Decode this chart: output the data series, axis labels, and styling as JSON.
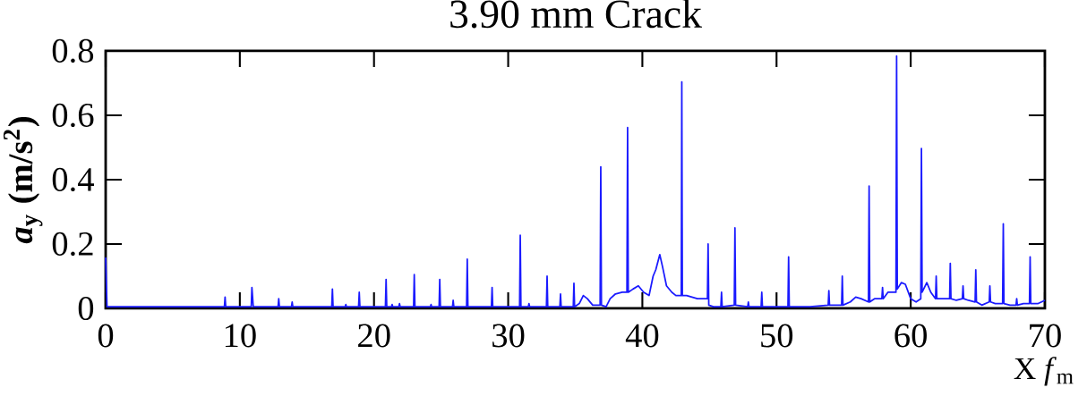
{
  "chart_data": {
    "type": "line",
    "title": "3.90 mm Crack",
    "ylabel": "*a*$_{y}$ (m/s$^{2}$)",
    "xlabel": "X *f*$_{m}$",
    "xlim": [
      0,
      70
    ],
    "xticks": [
      0,
      10,
      20,
      30,
      40,
      50,
      60,
      70
    ],
    "ylim": [
      0,
      0.8
    ],
    "yticks": [
      0,
      0.2,
      0.4,
      0.6,
      0.8
    ],
    "marker": "none",
    "line_style": "solid",
    "series": [
      {
        "color": "#1a1aff",
        "x": [
          0,
          0.1,
          8.85,
          8.9,
          8.95,
          10.85,
          10.9,
          11.0,
          12.85,
          12.9,
          12.95,
          13.85,
          13.9,
          13.95,
          16.85,
          16.9,
          16.95,
          17.85,
          17.9,
          17.95,
          18.85,
          18.9,
          18.95,
          20.85,
          20.9,
          20.95,
          21.3,
          21.35,
          21.4,
          21.85,
          21.9,
          21.95,
          22.95,
          23.0,
          23.05,
          24.2,
          24.25,
          24.3,
          24.85,
          24.9,
          24.95,
          25.85,
          25.9,
          25.95,
          26.9,
          26.95,
          27.0,
          28.75,
          28.8,
          28.85,
          30.85,
          30.9,
          30.95,
          31.5,
          31.55,
          31.6,
          32.85,
          32.9,
          32.95,
          33.85,
          33.9,
          33.95,
          34.85,
          34.9,
          34.95,
          35.3,
          35.6,
          35.9,
          36.3,
          36.85,
          36.9,
          36.95,
          37.3,
          37.6,
          38.0,
          38.5,
          38.85,
          38.9,
          38.95,
          39.3,
          39.7,
          40.1,
          40.5,
          40.8,
          41.0,
          41.3,
          41.5,
          41.8,
          42.2,
          42.5,
          42.9,
          42.94,
          42.98,
          43.3,
          43.7,
          44.1,
          44.5,
          44.85,
          44.9,
          44.95,
          45.3,
          45.85,
          45.9,
          45.95,
          46.85,
          46.9,
          46.95,
          47.85,
          47.9,
          47.95,
          48.85,
          48.9,
          48.95,
          50.85,
          50.9,
          50.95,
          52.5,
          53.85,
          53.9,
          53.95,
          54.85,
          54.9,
          54.95,
          55.5,
          55.9,
          56.3,
          56.85,
          56.9,
          56.95,
          57.3,
          57.85,
          57.9,
          57.95,
          58.3,
          58.9,
          58.95,
          59.0,
          59.3,
          59.6,
          60.0,
          60.4,
          60.75,
          60.8,
          60.85,
          61.2,
          61.5,
          61.85,
          61.9,
          61.95,
          62.4,
          62.9,
          62.95,
          63.0,
          63.4,
          63.85,
          63.9,
          63.95,
          64.3,
          64.8,
          64.85,
          64.9,
          65.3,
          65.85,
          65.9,
          65.95,
          66.3,
          66.85,
          66.9,
          66.95,
          67.4,
          67.85,
          67.9,
          67.95,
          68.4,
          68.85,
          68.9,
          68.95,
          69.5,
          70
        ],
        "values": [
          0.158,
          0.005,
          0.005,
          0.035,
          0.005,
          0.005,
          0.065,
          0.005,
          0.005,
          0.03,
          0.005,
          0.005,
          0.02,
          0.005,
          0.005,
          0.06,
          0.005,
          0.005,
          0.012,
          0.005,
          0.005,
          0.05,
          0.005,
          0.005,
          0.09,
          0.005,
          0.005,
          0.012,
          0.005,
          0.005,
          0.015,
          0.005,
          0.005,
          0.105,
          0.005,
          0.005,
          0.012,
          0.005,
          0.005,
          0.09,
          0.005,
          0.005,
          0.025,
          0.005,
          0.005,
          0.153,
          0.005,
          0.005,
          0.065,
          0.005,
          0.005,
          0.227,
          0.005,
          0.005,
          0.015,
          0.005,
          0.005,
          0.1,
          0.005,
          0.005,
          0.045,
          0.005,
          0.005,
          0.078,
          0.005,
          0.015,
          0.04,
          0.03,
          0.01,
          0.01,
          0.44,
          0.01,
          0.005,
          0.03,
          0.045,
          0.05,
          0.05,
          0.562,
          0.05,
          0.06,
          0.07,
          0.05,
          0.04,
          0.1,
          0.12,
          0.167,
          0.13,
          0.07,
          0.05,
          0.04,
          0.04,
          0.704,
          0.04,
          0.04,
          0.035,
          0.03,
          0.03,
          0.03,
          0.2,
          0.01,
          0.005,
          0.005,
          0.05,
          0.005,
          0.01,
          0.25,
          0.01,
          0.005,
          0.02,
          0.005,
          0.005,
          0.05,
          0.005,
          0.005,
          0.16,
          0.005,
          0.005,
          0.01,
          0.055,
          0.01,
          0.01,
          0.1,
          0.01,
          0.02,
          0.035,
          0.03,
          0.02,
          0.38,
          0.02,
          0.03,
          0.03,
          0.065,
          0.03,
          0.05,
          0.05,
          0.784,
          0.06,
          0.08,
          0.075,
          0.03,
          0.02,
          0.03,
          0.497,
          0.05,
          0.08,
          0.05,
          0.03,
          0.1,
          0.03,
          0.03,
          0.03,
          0.14,
          0.03,
          0.025,
          0.03,
          0.07,
          0.03,
          0.025,
          0.02,
          0.12,
          0.02,
          0.01,
          0.02,
          0.07,
          0.02,
          0.015,
          0.015,
          0.263,
          0.015,
          0.01,
          0.01,
          0.03,
          0.01,
          0.015,
          0.015,
          0.16,
          0.015,
          0.015,
          0.025
        ]
      }
    ]
  }
}
